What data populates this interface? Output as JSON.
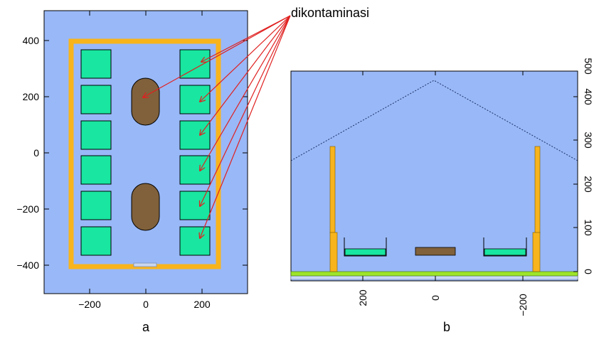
{
  "annotation": {
    "label": "dikontaminasi",
    "arrow_color": "#e02020"
  },
  "panel_a": {
    "label": "a",
    "x_ticks": [
      "−200",
      "0",
      "200"
    ],
    "y_ticks": [
      "400",
      "200",
      "0",
      "−200",
      "−400"
    ],
    "x_range": [
      -340,
      340
    ],
    "y_range": [
      -490,
      480
    ]
  },
  "panel_b": {
    "label": "b",
    "x_ticks": [
      "200",
      "0",
      "−200"
    ],
    "y_ticks": [
      "0",
      "100",
      "200",
      "300",
      "400",
      "500"
    ]
  },
  "colors": {
    "background": "#99b8f7",
    "wall": "#f8b41c",
    "rack": "#19e6a0",
    "bed": "#80613b",
    "floor": "#9ee52a"
  }
}
